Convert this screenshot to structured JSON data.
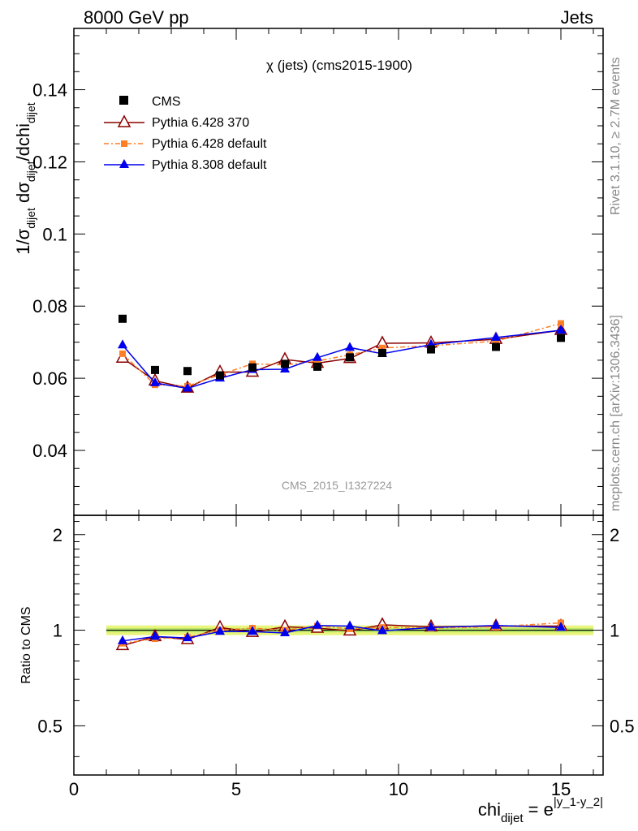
{
  "header": {
    "energy_label": "8000 GeV pp",
    "process_label": "Jets"
  },
  "side_labels": {
    "rivet": "Rivet 3.1.10, ≥ 2.7M events",
    "mcplots": "mcplots.cern.ch [arXiv:1306.3436]"
  },
  "chart_data": {
    "type": "scatter",
    "title": "χ (jets) (cms2015-1900)",
    "analysis_label": "CMS_2015_I1327224",
    "xlabel": "chi_dijet = e^|y_1-y_2|",
    "ylabel": "1/σ_dijet dσ_dijet/dchi_dijet",
    "ratio_ylabel": "Ratio to CMS",
    "xlim": [
      0,
      16.3
    ],
    "ylim": [
      0.022,
      0.157
    ],
    "ratio_ylim": [
      0.35,
      2.3
    ],
    "xticks": [
      0,
      5,
      10,
      15
    ],
    "yticks": [
      0.04,
      0.06,
      0.08,
      0.1,
      0.12,
      0.14
    ],
    "yticklabels": [
      "0.04",
      "0.06",
      "0.08",
      "0.1",
      "0.12",
      "0.14"
    ],
    "ratio_yticks": [
      0.5,
      1,
      2
    ],
    "ratio_yticklabels": [
      "0.5",
      "1",
      "2"
    ],
    "legend_position": "top-left",
    "grid": false,
    "x": [
      1.5,
      2.5,
      3.5,
      4.5,
      5.5,
      6.5,
      7.5,
      8.5,
      9.5,
      11,
      13,
      15
    ],
    "x_edges": [
      1,
      2,
      3,
      4,
      5,
      6,
      7,
      8,
      9,
      10,
      12,
      14,
      16
    ],
    "data": {
      "name": "CMS",
      "color": "#000000",
      "values": [
        0.0765,
        0.0623,
        0.062,
        0.0608,
        0.063,
        0.064,
        0.0632,
        0.0658,
        0.067,
        0.068,
        0.0687,
        0.0712
      ]
    },
    "series": [
      {
        "name": "Pythia 6.428 370",
        "color": "#8b0000",
        "marker": "open-triangle",
        "values": [
          0.0656,
          0.0593,
          0.0573,
          0.0617,
          0.0617,
          0.0652,
          0.0642,
          0.0655,
          0.0697,
          0.0698,
          0.0708,
          0.0733
        ],
        "ratio": [
          0.895,
          0.955,
          0.935,
          1.02,
          0.985,
          1.025,
          1.015,
          0.995,
          1.04,
          1.025,
          1.03,
          1.03
        ]
      },
      {
        "name": "Pythia 6.428 default",
        "color": "#ff7f27",
        "marker": "square",
        "values": [
          0.0668,
          0.0582,
          0.0578,
          0.061,
          0.064,
          0.0637,
          0.0648,
          0.0665,
          0.0684,
          0.069,
          0.0703,
          0.0752
        ],
        "ratio": [
          0.91,
          0.94,
          0.95,
          1.0,
          1.015,
          1.0,
          1.03,
          1.01,
          1.02,
          1.015,
          1.025,
          1.055
        ]
      },
      {
        "name": "Pythia 8.308 default",
        "color": "#0000ee",
        "marker": "filled-triangle",
        "values": [
          0.0692,
          0.0587,
          0.0572,
          0.06,
          0.0624,
          0.0625,
          0.0657,
          0.0685,
          0.0668,
          0.0693,
          0.0713,
          0.0733
        ],
        "ratio": [
          0.925,
          0.955,
          0.945,
          0.99,
          0.99,
          0.98,
          1.035,
          1.03,
          0.995,
          1.02,
          1.035,
          1.02
        ]
      }
    ]
  }
}
